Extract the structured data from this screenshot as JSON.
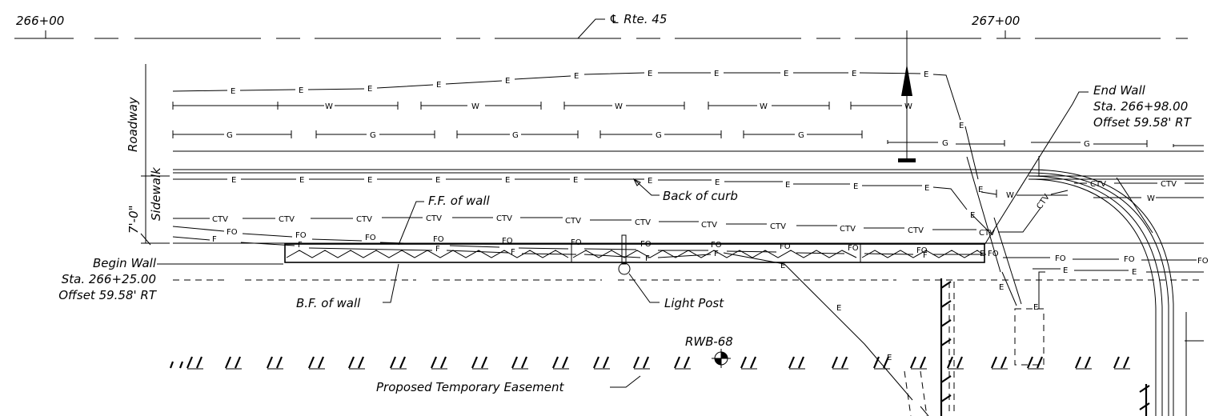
{
  "stations": {
    "left": "266+00",
    "right": "267+00"
  },
  "centerline": "℄ Rte. 45",
  "zones": {
    "roadway": "Roadway",
    "sidewalk": "Sidewalk",
    "sidewalk_width": "7'-0\""
  },
  "utility_codes": {
    "electric": "E",
    "water": "W",
    "gas": "G",
    "cable_tv": "CTV",
    "fiber_optic": "FO",
    "f": "F"
  },
  "end_wall": {
    "title": "End Wall",
    "station": "Sta. 266+98.00",
    "offset": "Offset 59.58' RT"
  },
  "begin_wall": {
    "title": "Begin Wall",
    "station": "Sta. 266+25.00",
    "offset": "Offset 59.58' RT"
  },
  "callouts": {
    "back_of_curb": "Back of curb",
    "ff_wall": "F.F. of wall",
    "bf_wall": "B.F. of wall",
    "light_post": "Light Post",
    "boring": "RWB-68",
    "easement": "Proposed Temporary Easement"
  }
}
